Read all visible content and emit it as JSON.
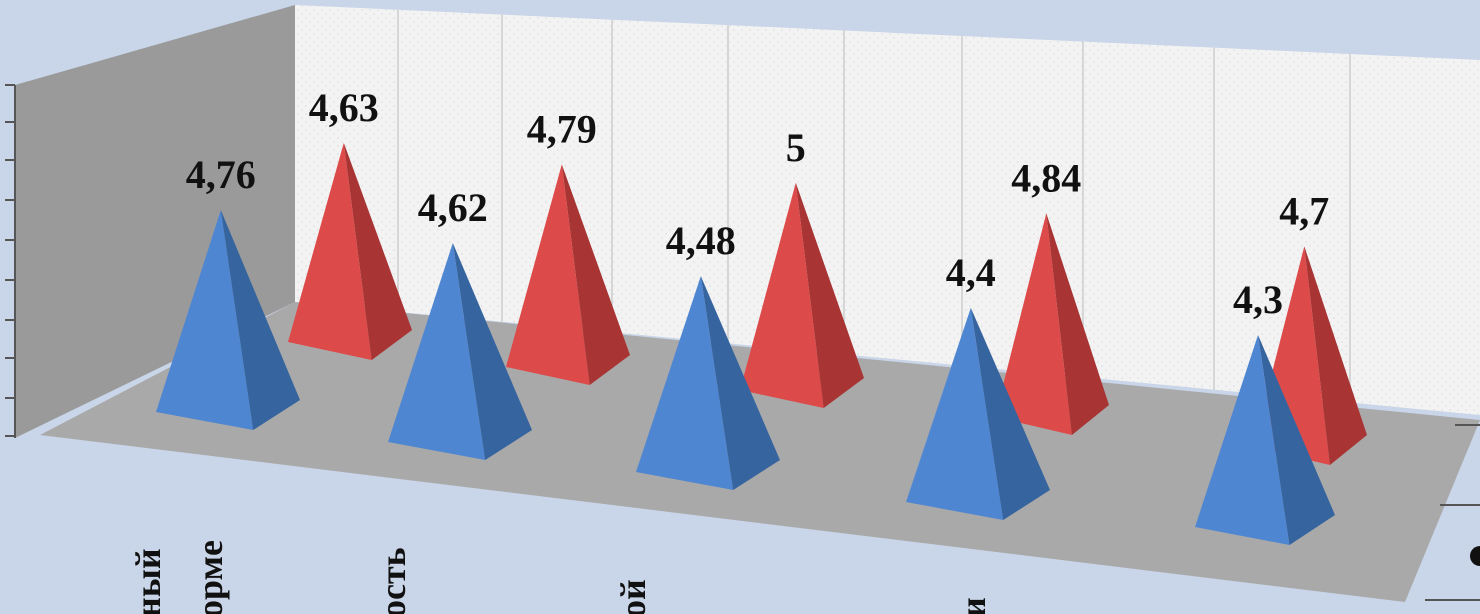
{
  "chart_data": {
    "type": "bar",
    "shape": "pyramid-3d",
    "categories": [
      "ный",
      "орме",
      "ость",
      "ой",
      "и"
    ],
    "series": [
      {
        "values": [
          4.76,
          4.62,
          4.48,
          4.4,
          4.3
        ]
      },
      {
        "values": [
          4.63,
          4.79,
          5,
          4.84,
          4.7
        ]
      }
    ],
    "data_labels": {
      "front": [
        "4,76",
        "4,62",
        "4,48",
        "4,4",
        "4,3"
      ],
      "back": [
        "4,63",
        "4,79",
        "5",
        "4,84",
        "4,7"
      ]
    },
    "grid": true,
    "legend": "none"
  },
  "colors": {
    "background": "#c9d5e8",
    "back_wall": "#f2f2f2",
    "side_wall": "#9a9a9a",
    "floor": "#a9a9a9",
    "series_front": "#4f86d1",
    "series_back": "#dd4a4a"
  }
}
